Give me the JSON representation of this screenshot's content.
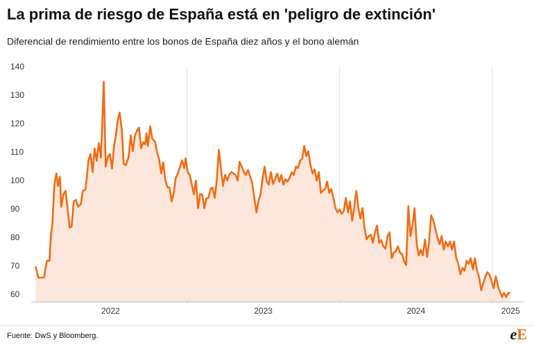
{
  "chart_data": {
    "type": "line",
    "title": "La prima de riesgo de España está en 'peligro de extinción'",
    "subtitle": "Diferencial de rendimiento entre los bonos de España diez años y el bono alemán",
    "source": "Fuente: DwS y Bloomberg.",
    "logo": [
      "e",
      "E"
    ],
    "x": [
      2022.009,
      2022.027,
      2022.064,
      2022.082,
      2022.1,
      2022.109,
      2022.118,
      2022.132,
      2022.145,
      2022.155,
      2022.168,
      2022.177,
      2022.191,
      2022.205,
      2022.218,
      2022.232,
      2022.245,
      2022.259,
      2022.273,
      2022.286,
      2022.305,
      2022.318,
      2022.336,
      2022.355,
      2022.368,
      2022.382,
      2022.395,
      2022.409,
      2022.423,
      2022.436,
      2022.445,
      2022.455,
      2022.468,
      2022.482,
      2022.495,
      2022.509,
      2022.523,
      2022.536,
      2022.545,
      2022.559,
      2022.573,
      2022.586,
      2022.6,
      2022.618,
      2022.632,
      2022.645,
      2022.659,
      2022.673,
      2022.686,
      2022.7,
      2022.714,
      2022.727,
      2022.736,
      2022.745,
      2022.759,
      2022.773,
      2022.791,
      2022.805,
      2022.818,
      2022.832,
      2022.845,
      2022.859,
      2022.873,
      2022.886,
      2022.9,
      2022.914,
      2022.927,
      2022.941,
      2022.955,
      2022.968,
      2022.982,
      2022.991,
      2023.005,
      2023.018,
      2023.032,
      2023.045,
      2023.059,
      2023.073,
      2023.086,
      2023.1,
      2023.114,
      2023.127,
      2023.141,
      2023.155,
      2023.168,
      2023.182,
      2023.195,
      2023.209,
      2023.223,
      2023.236,
      2023.25,
      2023.264,
      2023.277,
      2023.291,
      2023.305,
      2023.318,
      2023.332,
      2023.345,
      2023.359,
      2023.373,
      2023.386,
      2023.4,
      2023.414,
      2023.427,
      2023.441,
      2023.455,
      2023.468,
      2023.482,
      2023.495,
      2023.509,
      2023.523,
      2023.536,
      2023.55,
      2023.564,
      2023.577,
      2023.591,
      2023.605,
      2023.618,
      2023.632,
      2023.645,
      2023.659,
      2023.673,
      2023.686,
      2023.7,
      2023.714,
      2023.727,
      2023.741,
      2023.755,
      2023.768,
      2023.782,
      2023.795,
      2023.809,
      2023.823,
      2023.836,
      2023.85,
      2023.864,
      2023.877,
      2023.891,
      2023.905,
      2023.918,
      2023.932,
      2023.945,
      2023.959,
      2023.973,
      2023.986,
      2024,
      2024.014,
      2024.027,
      2024.041,
      2024.055,
      2024.068,
      2024.082,
      2024.095,
      2024.109,
      2024.123,
      2024.136,
      2024.15,
      2024.164,
      2024.177,
      2024.191,
      2024.205,
      2024.218,
      2024.232,
      2024.245,
      2024.259,
      2024.273,
      2024.286,
      2024.3,
      2024.314,
      2024.327,
      2024.341,
      2024.355,
      2024.368,
      2024.382,
      2024.395,
      2024.409,
      2024.423,
      2024.436,
      2024.45,
      2024.464,
      2024.477,
      2024.491,
      2024.505,
      2024.518,
      2024.532,
      2024.545,
      2024.559,
      2024.573,
      2024.586,
      2024.6,
      2024.614,
      2024.627,
      2024.641,
      2024.655,
      2024.668,
      2024.682,
      2024.695,
      2024.709,
      2024.723,
      2024.736,
      2024.75,
      2024.764,
      2024.777,
      2024.791,
      2024.805,
      2024.818,
      2024.832,
      2024.845,
      2024.859,
      2024.873,
      2024.886,
      2024.9,
      2024.914,
      2024.927,
      2024.941,
      2024.955,
      2024.968,
      2024.982,
      2024.995,
      2025.009,
      2025.023,
      2025.036,
      2025.05,
      2025.064,
      2025.077,
      2025.091,
      2025.105,
      2025.118
    ],
    "series": [
      {
        "color": "#f26b12",
        "fill": "#fde6dc",
        "values": [
          70,
          66.1,
          66.1,
          72,
          72,
          81.2,
          84.4,
          99,
          102.7,
          98.3,
          101.5,
          91,
          95.4,
          96.6,
          90.5,
          83.7,
          84.1,
          92.9,
          93.4,
          91,
          92,
          96.6,
          97.1,
          107.3,
          109.5,
          103.2,
          111.5,
          107.1,
          113.4,
          108.3,
          119.8,
          135,
          105.1,
          108.5,
          109.5,
          104.4,
          112.4,
          116.6,
          121,
          124.1,
          118.3,
          106.1,
          105.6,
          108.5,
          116.1,
          110.5,
          115.9,
          117.8,
          118.8,
          111.5,
          113.7,
          112.9,
          116.8,
          112.4,
          119.3,
          114.9,
          113.9,
          110,
          107.6,
          102.7,
          106.6,
          100.2,
          97.8,
          97.8,
          92.9,
          95.9,
          101.2,
          102.7,
          105.1,
          107.3,
          104.6,
          108,
          103.2,
          102.2,
          98.8,
          95.4,
          100.2,
          90.5,
          95.4,
          95.4,
          90.5,
          93.9,
          94.1,
          97.3,
          97.8,
          94.1,
          100.2,
          111,
          104.1,
          98.3,
          102.2,
          100.2,
          102.2,
          103.2,
          102.7,
          102.2,
          100.2,
          106.8,
          105.1,
          103.2,
          102.2,
          103.9,
          101.5,
          99.5,
          94.4,
          89,
          92.9,
          95.4,
          100.7,
          105.1,
          99.8,
          98.8,
          103.2,
          99,
          100.7,
          102.7,
          99.8,
          102.2,
          98.8,
          100.7,
          99.8,
          101.2,
          103.2,
          102.2,
          105.1,
          104.6,
          107.1,
          108,
          112.4,
          108.8,
          110.5,
          105.6,
          102.7,
          104.1,
          100.2,
          103.2,
          95.9,
          96.6,
          97.3,
          99.8,
          95.9,
          97.3,
          94.1,
          90.5,
          89,
          90,
          88.5,
          89.5,
          94.1,
          89,
          92.9,
          86.1,
          90.5,
          96.6,
          90.5,
          86.8,
          90.5,
          83.2,
          79.5,
          80.7,
          81.2,
          78.3,
          82.2,
          84.4,
          78.3,
          79.3,
          77.1,
          76.3,
          80.7,
          82,
          72.9,
          74.9,
          75.4,
          77.1,
          74.9,
          74.4,
          71.7,
          70.5,
          91.2,
          80.7,
          84.4,
          90.5,
          77.8,
          73.9,
          75.9,
          73.9,
          79.5,
          73.4,
          78.8,
          88,
          86.1,
          83.2,
          80.2,
          77.8,
          80.7,
          75.9,
          78.8,
          77.1,
          78.8,
          75.9,
          78.8,
          72.9,
          71,
          67.3,
          69.5,
          68.5,
          72,
          71,
          72.9,
          69,
          72.9,
          68.5,
          66.1,
          61.7,
          64.1,
          66.6,
          68,
          67.1,
          64.9,
          62.4,
          66.6,
          63.2,
          61.2,
          59.3,
          60.7,
          59.3,
          60.7,
          60.7
        ]
      }
    ],
    "xlim": [
      2021.98,
      2025.205
    ],
    "xticks": [
      {
        "value": 2022.5,
        "label": "2022"
      },
      {
        "value": 2023.5,
        "label": "2023"
      },
      {
        "value": 2024.5,
        "label": "2024"
      },
      {
        "value": 2025.12,
        "label": "2025"
      }
    ],
    "xgrid": [
      2023,
      2024,
      2025
    ],
    "ylim": [
      57.6,
      140
    ],
    "yticks": [
      60,
      70,
      80,
      90,
      100,
      110,
      120,
      130,
      140
    ]
  }
}
